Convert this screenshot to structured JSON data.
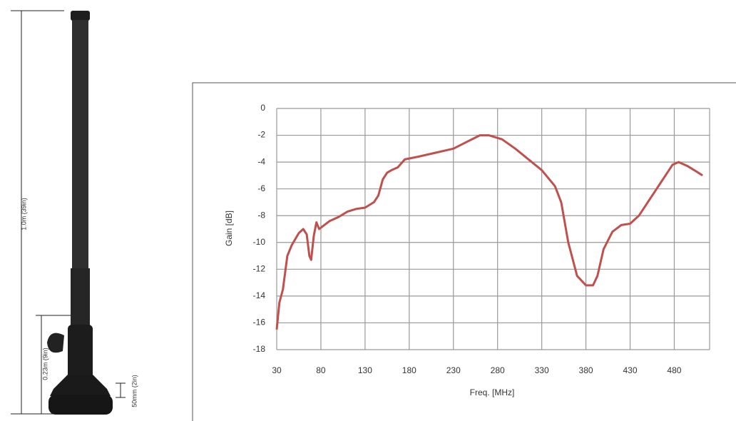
{
  "chart_data": {
    "type": "line",
    "x_label": "Freq. [MHz]",
    "y_label": "Gain [dB]",
    "x": [
      30,
      33,
      37,
      42,
      47,
      55,
      60,
      64,
      67,
      69,
      72,
      75,
      78,
      82,
      90,
      100,
      110,
      120,
      130,
      140,
      145,
      150,
      155,
      160,
      167,
      175,
      190,
      210,
      230,
      245,
      260,
      270,
      285,
      300,
      315,
      330,
      345,
      352,
      360,
      370,
      380,
      388,
      393,
      400,
      410,
      420,
      430,
      440,
      450,
      460,
      470,
      478,
      485,
      495,
      505,
      512
    ],
    "values": [
      -16.5,
      -14.5,
      -13.5,
      -11,
      -10.2,
      -9.3,
      -9,
      -9.4,
      -11,
      -11.3,
      -9.5,
      -8.5,
      -9,
      -8.8,
      -8.4,
      -8.1,
      -7.7,
      -7.5,
      -7.4,
      -7,
      -6.5,
      -5.3,
      -4.8,
      -4.6,
      -4.4,
      -3.8,
      -3.6,
      -3.3,
      -3,
      -2.5,
      -2,
      -2,
      -2.3,
      -3,
      -3.8,
      -4.6,
      -5.8,
      -7,
      -10,
      -12.5,
      -13.2,
      -13.2,
      -12.5,
      -10.5,
      -9.2,
      -8.7,
      -8.6,
      -8,
      -7,
      -6,
      -5,
      -4.2,
      -4,
      -4.3,
      -4.7,
      -5
    ],
    "color": "#c0504d",
    "xlim": [
      30,
      520
    ],
    "ylim": [
      -18,
      0
    ],
    "xticks": [
      30,
      80,
      130,
      180,
      230,
      280,
      330,
      380,
      430,
      480
    ],
    "yticks": [
      0,
      -2,
      -4,
      -6,
      -8,
      -10,
      -12,
      -14,
      -16,
      -18
    ],
    "grid": true
  },
  "antenna": {
    "height_label": "1.0m (39in)",
    "base_label": "0.23m (9in)",
    "foot_label": "50mm (2in)"
  }
}
